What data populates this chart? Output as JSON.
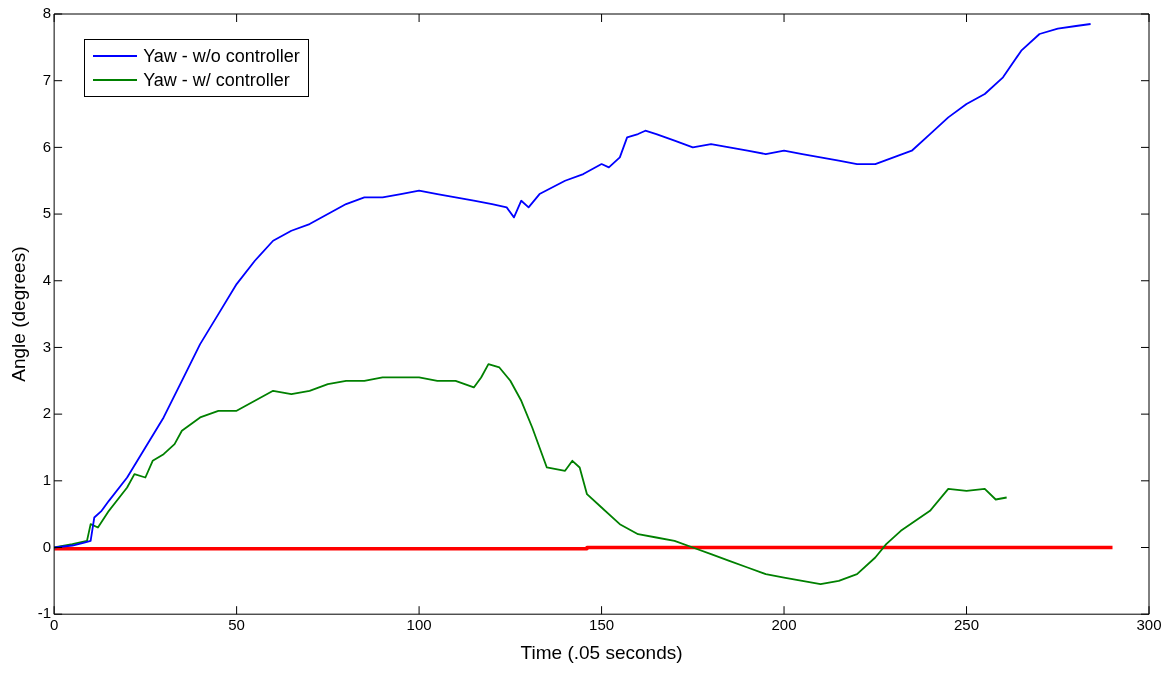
{
  "chart_data": {
    "type": "line",
    "xlabel": "Time (.05 seconds)",
    "ylabel": "Angle (degrees)",
    "xlim": [
      0,
      300
    ],
    "xticks": [
      0,
      50,
      100,
      150,
      200,
      250,
      300
    ],
    "ylim": [
      -1,
      8
    ],
    "yticks": [
      -1,
      0,
      1,
      2,
      3,
      4,
      5,
      6,
      7,
      8
    ],
    "grid": false,
    "legend": "top left",
    "marker": "none",
    "line_style": "solid",
    "series": [
      {
        "name": "Yaw - w/o controller",
        "color": "#0000ff",
        "x": [
          0,
          5,
          8,
          10,
          11,
          13,
          15,
          20,
          25,
          30,
          35,
          40,
          45,
          50,
          55,
          60,
          65,
          70,
          75,
          80,
          85,
          90,
          95,
          100,
          105,
          110,
          115,
          120,
          124,
          126,
          128,
          130,
          133,
          140,
          145,
          150,
          152,
          155,
          157,
          160,
          162,
          165,
          170,
          175,
          180,
          185,
          190,
          195,
          200,
          205,
          210,
          215,
          220,
          225,
          230,
          235,
          240,
          245,
          250,
          255,
          260,
          265,
          270,
          275,
          280,
          284
        ],
        "values": [
          0,
          0.03,
          0.07,
          0.1,
          0.45,
          0.55,
          0.7,
          1.05,
          1.5,
          1.95,
          2.5,
          3.05,
          3.5,
          3.95,
          4.3,
          4.6,
          4.75,
          4.85,
          5.0,
          5.15,
          5.25,
          5.25,
          5.3,
          5.35,
          5.3,
          5.25,
          5.2,
          5.15,
          5.1,
          4.95,
          5.2,
          5.1,
          5.3,
          5.5,
          5.6,
          5.75,
          5.7,
          5.85,
          6.15,
          6.2,
          6.25,
          6.2,
          6.1,
          6.0,
          6.05,
          6.0,
          5.95,
          5.9,
          5.95,
          5.9,
          5.85,
          5.8,
          5.75,
          5.75,
          5.85,
          5.95,
          6.2,
          6.45,
          6.65,
          6.8,
          7.05,
          7.45,
          7.7,
          7.78,
          7.82,
          7.85
        ]
      },
      {
        "name": "Yaw - w/ controller",
        "color": "#008000",
        "x": [
          0,
          5,
          9,
          10,
          12,
          15,
          20,
          22,
          25,
          27,
          30,
          33,
          35,
          40,
          45,
          50,
          55,
          60,
          65,
          70,
          75,
          80,
          85,
          90,
          95,
          100,
          105,
          110,
          115,
          117,
          119,
          122,
          125,
          128,
          131,
          133,
          135,
          140,
          142,
          144,
          146,
          150,
          155,
          160,
          165,
          170,
          175,
          180,
          185,
          190,
          195,
          200,
          205,
          210,
          215,
          220,
          225,
          228,
          232,
          236,
          240,
          245,
          250,
          255,
          258,
          261
        ],
        "values": [
          0,
          0.05,
          0.1,
          0.35,
          0.3,
          0.55,
          0.9,
          1.1,
          1.05,
          1.3,
          1.4,
          1.55,
          1.75,
          1.95,
          2.05,
          2.05,
          2.2,
          2.35,
          2.3,
          2.35,
          2.45,
          2.5,
          2.5,
          2.55,
          2.55,
          2.55,
          2.5,
          2.5,
          2.4,
          2.55,
          2.75,
          2.7,
          2.5,
          2.2,
          1.8,
          1.5,
          1.2,
          1.15,
          1.3,
          1.2,
          0.8,
          0.6,
          0.35,
          0.2,
          0.15,
          0.1,
          0,
          -0.1,
          -0.2,
          -0.3,
          -0.4,
          -0.45,
          -0.5,
          -0.55,
          -0.5,
          -0.4,
          -0.15,
          0.05,
          0.25,
          0.4,
          0.55,
          0.88,
          0.85,
          0.88,
          0.72,
          0.75
        ]
      },
      {
        "color": "#ff0000",
        "x": [
          0,
          146,
          146,
          290
        ],
        "values": [
          -0.02,
          -0.02,
          0,
          0
        ]
      }
    ]
  }
}
